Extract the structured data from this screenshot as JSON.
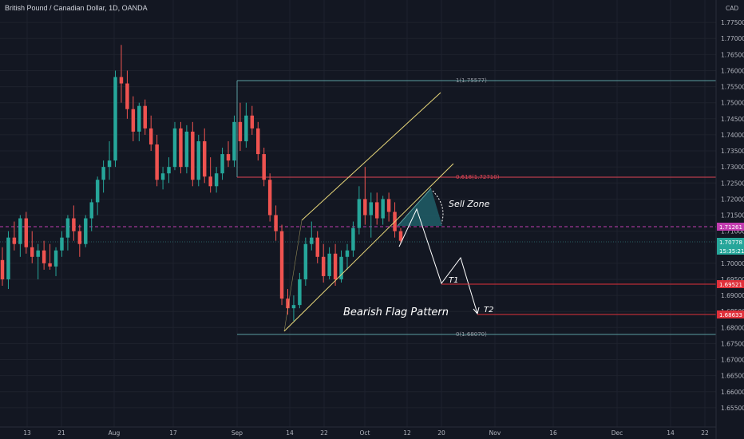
{
  "title": "British Pound / Canadian Dollar, 1D, OANDA",
  "currency": "CAD",
  "chart_data": {
    "type": "candlestick",
    "ylim": [
      1.65,
      1.78
    ],
    "y_ticks": [
      "1.77500",
      "1.77000",
      "1.76500",
      "1.76000",
      "1.75500",
      "1.75000",
      "1.74500",
      "1.74000",
      "1.73500",
      "1.73000",
      "1.72500",
      "1.72000",
      "1.71500",
      "1.71000",
      "1.70000",
      "1.69500",
      "1.69000",
      "1.68500",
      "1.68000",
      "1.67500",
      "1.67000",
      "1.66500",
      "1.66000",
      "1.65500"
    ],
    "x_ticks": [
      "13",
      "21",
      "Aug",
      "17",
      "Sep",
      "14",
      "22",
      "Oct",
      "12",
      "20",
      "Nov",
      "16",
      "Dec",
      "14",
      "22"
    ],
    "up_color": "#26a69a",
    "down_color": "#ef5350",
    "candles": [
      [
        1.701,
        1.705,
        1.693,
        1.695
      ],
      [
        1.695,
        1.71,
        1.692,
        1.708
      ],
      [
        1.708,
        1.713,
        1.704,
        1.706
      ],
      [
        1.706,
        1.715,
        1.702,
        1.714
      ],
      [
        1.714,
        1.716,
        1.703,
        1.705
      ],
      [
        1.705,
        1.71,
        1.7,
        1.702
      ],
      [
        1.702,
        1.706,
        1.695,
        1.704
      ],
      [
        1.704,
        1.707,
        1.698,
        1.7
      ],
      [
        1.7,
        1.706,
        1.698,
        1.699
      ],
      [
        1.699,
        1.705,
        1.696,
        1.704
      ],
      [
        1.704,
        1.71,
        1.702,
        1.708
      ],
      [
        1.708,
        1.715,
        1.704,
        1.714
      ],
      [
        1.714,
        1.718,
        1.707,
        1.71
      ],
      [
        1.71,
        1.712,
        1.702,
        1.706
      ],
      [
        1.706,
        1.715,
        1.705,
        1.714
      ],
      [
        1.714,
        1.72,
        1.71,
        1.719
      ],
      [
        1.719,
        1.727,
        1.715,
        1.726
      ],
      [
        1.726,
        1.732,
        1.722,
        1.73
      ],
      [
        1.73,
        1.738,
        1.726,
        1.732
      ],
      [
        1.732,
        1.76,
        1.73,
        1.758
      ],
      [
        1.758,
        1.768,
        1.75,
        1.756
      ],
      [
        1.756,
        1.76,
        1.745,
        1.748
      ],
      [
        1.748,
        1.752,
        1.738,
        1.741
      ],
      [
        1.741,
        1.75,
        1.738,
        1.749
      ],
      [
        1.749,
        1.751,
        1.74,
        1.742
      ],
      [
        1.742,
        1.746,
        1.735,
        1.737
      ],
      [
        1.737,
        1.74,
        1.724,
        1.726
      ],
      [
        1.726,
        1.73,
        1.723,
        1.728
      ],
      [
        1.728,
        1.733,
        1.725,
        1.73
      ],
      [
        1.73,
        1.744,
        1.729,
        1.742
      ],
      [
        1.742,
        1.744,
        1.728,
        1.73
      ],
      [
        1.73,
        1.743,
        1.728,
        1.741
      ],
      [
        1.741,
        1.744,
        1.724,
        1.726
      ],
      [
        1.726,
        1.74,
        1.724,
        1.738
      ],
      [
        1.738,
        1.742,
        1.725,
        1.727
      ],
      [
        1.727,
        1.733,
        1.722,
        1.724
      ],
      [
        1.724,
        1.73,
        1.722,
        1.728
      ],
      [
        1.728,
        1.736,
        1.726,
        1.734
      ],
      [
        1.734,
        1.738,
        1.73,
        1.732
      ],
      [
        1.732,
        1.746,
        1.73,
        1.744
      ],
      [
        1.744,
        1.75,
        1.735,
        1.738
      ],
      [
        1.738,
        1.75,
        1.736,
        1.746
      ],
      [
        1.746,
        1.749,
        1.74,
        1.742
      ],
      [
        1.742,
        1.744,
        1.732,
        1.734
      ],
      [
        1.734,
        1.736,
        1.724,
        1.726
      ],
      [
        1.726,
        1.728,
        1.713,
        1.715
      ],
      [
        1.715,
        1.718,
        1.707,
        1.71
      ],
      [
        1.71,
        1.712,
        1.687,
        1.689
      ],
      [
        1.689,
        1.692,
        1.684,
        1.686
      ],
      [
        1.686,
        1.69,
        1.682,
        1.687
      ],
      [
        1.687,
        1.697,
        1.686,
        1.695
      ],
      [
        1.695,
        1.708,
        1.693,
        1.706
      ],
      [
        1.706,
        1.713,
        1.704,
        1.708
      ],
      [
        1.708,
        1.71,
        1.7,
        1.702
      ],
      [
        1.702,
        1.706,
        1.694,
        1.696
      ],
      [
        1.696,
        1.705,
        1.695,
        1.703
      ],
      [
        1.703,
        1.706,
        1.693,
        1.695
      ],
      [
        1.695,
        1.704,
        1.694,
        1.702
      ],
      [
        1.702,
        1.706,
        1.698,
        1.704
      ],
      [
        1.704,
        1.713,
        1.702,
        1.711
      ],
      [
        1.711,
        1.724,
        1.709,
        1.72
      ],
      [
        1.72,
        1.73,
        1.712,
        1.715
      ],
      [
        1.715,
        1.722,
        1.708,
        1.719
      ],
      [
        1.719,
        1.722,
        1.712,
        1.714
      ],
      [
        1.714,
        1.721,
        1.712,
        1.72
      ],
      [
        1.72,
        1.722,
        1.713,
        1.716
      ],
      [
        1.716,
        1.719,
        1.708,
        1.71
      ],
      [
        1.71,
        1.711,
        1.706,
        1.707
      ]
    ]
  },
  "annotations": {
    "fib_1_label": "1(1.75577)",
    "fib_0618_label": "0.618(1.72710)",
    "fib_0_label": "0(1.68070)",
    "sell_zone": "Sell Zone",
    "pattern": "Bearish Flag Pattern",
    "t1": "T1",
    "t2": "T2"
  },
  "price_tags": {
    "current_line": "1.71261",
    "last_price": "1.70778",
    "countdown": "15:35:21",
    "t1_price": "1.69521",
    "t2_price": "1.68633"
  },
  "colors": {
    "background": "#131722",
    "grid": "#1e222d",
    "fib_teal": "#5b9ea0",
    "fib_red": "#e04455",
    "channel": "#e8d77a",
    "sell_zone_fill": "#1f5a64",
    "dashed_level": "#c23cb0",
    "target_red": "#e0303a",
    "last_price_tag": "#26a69a"
  }
}
